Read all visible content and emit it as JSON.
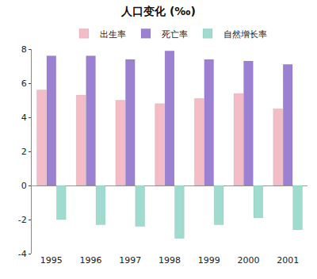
{
  "chart_data": {
    "type": "bar",
    "title": "人口变化 (‰)",
    "categories": [
      "1995",
      "1996",
      "1997",
      "1998",
      "1999",
      "2000",
      "2001"
    ],
    "series": [
      {
        "name": "出生率",
        "color": "#f4bcc6",
        "values": [
          5.6,
          5.3,
          5.0,
          4.8,
          5.1,
          5.4,
          4.5
        ]
      },
      {
        "name": "死亡率",
        "color": "#9c80d2",
        "values": [
          7.6,
          7.6,
          7.4,
          7.9,
          7.4,
          7.3,
          7.1
        ]
      },
      {
        "name": "自然增长率",
        "color": "#9fdccf",
        "values": [
          -2.0,
          -2.3,
          -2.4,
          -3.1,
          -2.3,
          -1.9,
          -2.6
        ]
      }
    ],
    "ylim": [
      -4,
      8
    ],
    "yticks": [
      -4,
      -2,
      0,
      2,
      4,
      6,
      8
    ],
    "grid": false,
    "legend": "top"
  }
}
